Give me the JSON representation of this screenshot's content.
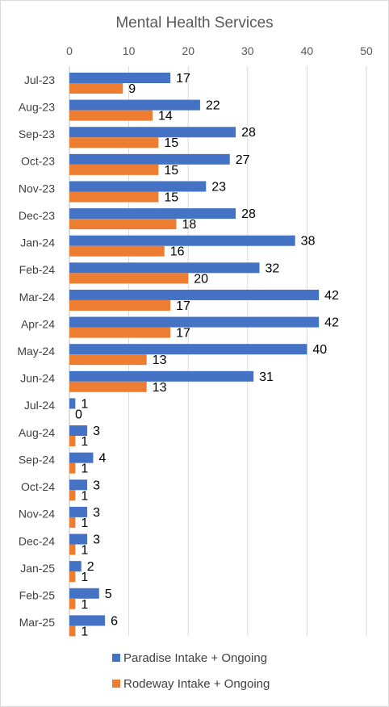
{
  "chart_data": {
    "type": "bar",
    "orientation": "horizontal",
    "title": "Mental Health Services",
    "xlim": [
      0,
      50
    ],
    "xticks": [
      0,
      10,
      20,
      30,
      40,
      50
    ],
    "grid": true,
    "legend_position": "bottom",
    "categories": [
      "Jul-23",
      "Aug-23",
      "Sep-23",
      "Oct-23",
      "Nov-23",
      "Dec-23",
      "Jan-24",
      "Feb-24",
      "Mar-24",
      "Apr-24",
      "May-24",
      "Jun-24",
      "Jul-24",
      "Aug-24",
      "Sep-24",
      "Oct-24",
      "Nov-24",
      "Dec-24",
      "Jan-25",
      "Feb-25",
      "Mar-25"
    ],
    "series": [
      {
        "name": "Paradise Intake + Ongoing",
        "color": "#4472C4",
        "values": [
          17,
          22,
          28,
          27,
          23,
          28,
          38,
          32,
          42,
          42,
          40,
          31,
          1,
          3,
          4,
          3,
          3,
          3,
          2,
          5,
          6
        ]
      },
      {
        "name": "Rodeway Intake + Ongoing",
        "color": "#ED7D31",
        "values": [
          9,
          14,
          15,
          15,
          15,
          18,
          16,
          20,
          17,
          17,
          13,
          13,
          0,
          1,
          1,
          1,
          1,
          1,
          1,
          1,
          1
        ]
      }
    ]
  }
}
